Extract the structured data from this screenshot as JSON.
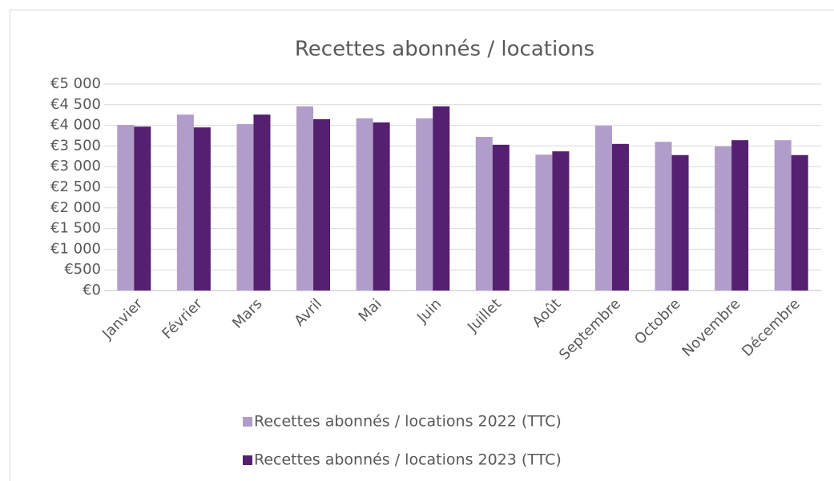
{
  "chart_data": {
    "type": "bar",
    "title": "Recettes abonnés / locations",
    "categories": [
      "Janvier",
      "Février",
      "Mars",
      "Avril",
      "Mai",
      "Juin",
      "Juillet",
      "Août",
      "Septembre",
      "Octobre",
      "Novembre",
      "Décembre"
    ],
    "series": [
      {
        "name": "Recettes abonnés / locations 2022 (TTC)",
        "color": "#b09dc9",
        "values": [
          4010,
          4260,
          4030,
          4460,
          4170,
          4170,
          3720,
          3290,
          3990,
          3600,
          3490,
          3640
        ]
      },
      {
        "name": "Recettes abonnés / locations 2023 (TTC)",
        "color": "#55206f",
        "values": [
          3970,
          3950,
          4260,
          4150,
          4070,
          4460,
          3530,
          3370,
          3550,
          3280,
          3640,
          3280
        ]
      }
    ],
    "ylim": [
      0,
      5000
    ],
    "yticks": [
      {
        "value": 0,
        "label": "€0"
      },
      {
        "value": 500,
        "label": "€500"
      },
      {
        "value": 1000,
        "label": "€1 000"
      },
      {
        "value": 1500,
        "label": "€1 500"
      },
      {
        "value": 2000,
        "label": "€2 000"
      },
      {
        "value": 2500,
        "label": "€2 500"
      },
      {
        "value": 3000,
        "label": "€3 000"
      },
      {
        "value": 3500,
        "label": "€3 500"
      },
      {
        "value": 4000,
        "label": "€4 000"
      },
      {
        "value": 4500,
        "label": "€4 500"
      },
      {
        "value": 5000,
        "label": "€5 000"
      }
    ],
    "grid": true,
    "legend": "bottom"
  }
}
